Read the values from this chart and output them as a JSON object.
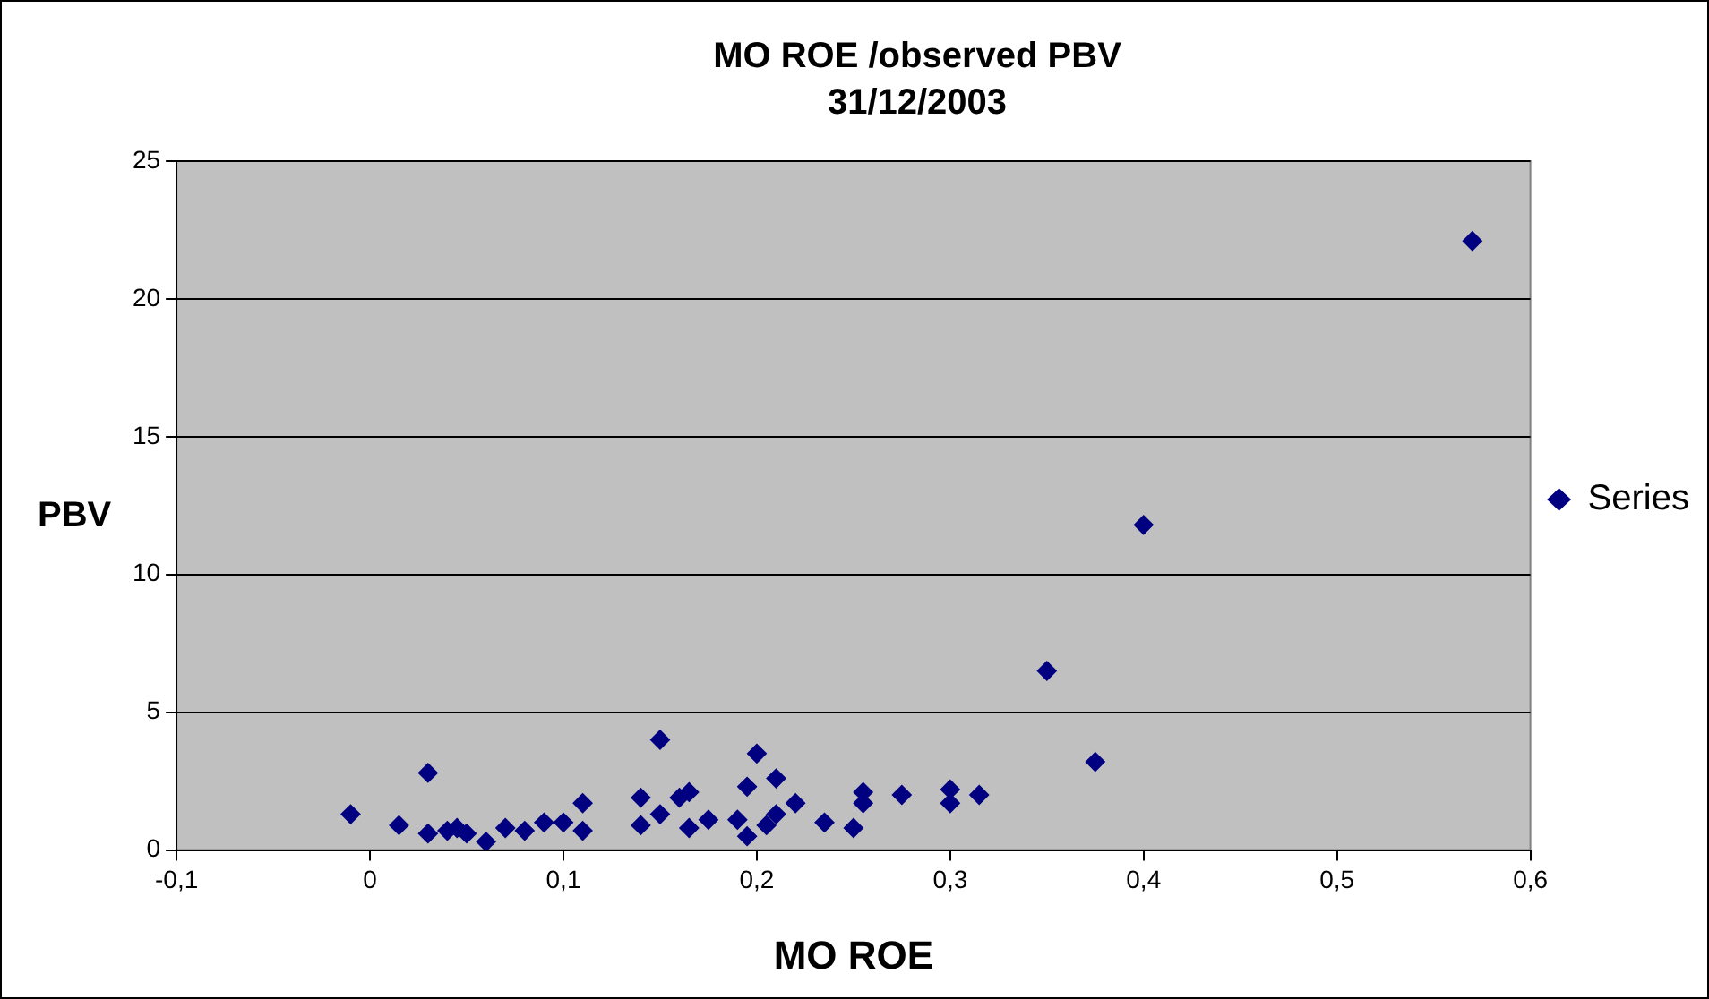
{
  "chart_data": {
    "type": "scatter",
    "title": "MO ROE /observed PBV",
    "subtitle": "31/12/2003",
    "xlabel": "MO ROE",
    "ylabel": "PBV",
    "xlim": [
      -0.1,
      0.6
    ],
    "xticks": [
      {
        "value": -0.1,
        "label": "-0,1"
      },
      0,
      {
        "value": 0.1,
        "label": "0,1"
      },
      {
        "value": 0.2,
        "label": "0,2"
      },
      {
        "value": 0.3,
        "label": "0,3"
      },
      {
        "value": 0.4,
        "label": "0,4"
      },
      {
        "value": 0.5,
        "label": "0,5"
      },
      {
        "value": 0.6,
        "label": "0,6"
      }
    ],
    "ylim": [
      0,
      25
    ],
    "yticks": [
      0,
      5,
      10,
      15,
      20,
      25
    ],
    "grid": "y",
    "legend": "right",
    "marker": "diamond",
    "series": [
      {
        "name": "Series",
        "color": "#000080",
        "x": [
          -0.01,
          0.015,
          0.03,
          0.03,
          0.04,
          0.045,
          0.05,
          0.06,
          0.07,
          0.08,
          0.09,
          0.1,
          0.11,
          0.11,
          0.14,
          0.14,
          0.15,
          0.15,
          0.16,
          0.165,
          0.165,
          0.175,
          0.19,
          0.195,
          0.2,
          0.195,
          0.205,
          0.21,
          0.21,
          0.22,
          0.235,
          0.25,
          0.255,
          0.255,
          0.275,
          0.3,
          0.3,
          0.315,
          0.35,
          0.375,
          0.4,
          0.57
        ],
        "values": [
          1.3,
          0.9,
          2.8,
          0.6,
          0.7,
          0.8,
          0.6,
          0.3,
          0.8,
          0.7,
          1.0,
          1.0,
          1.7,
          0.7,
          1.9,
          0.9,
          4.0,
          1.3,
          1.9,
          2.1,
          0.8,
          1.1,
          1.1,
          2.3,
          3.5,
          0.5,
          0.9,
          2.6,
          1.3,
          1.7,
          1.0,
          0.8,
          2.1,
          1.7,
          2.0,
          1.7,
          2.2,
          2.0,
          6.5,
          3.2,
          11.8,
          22.1
        ]
      }
    ]
  }
}
